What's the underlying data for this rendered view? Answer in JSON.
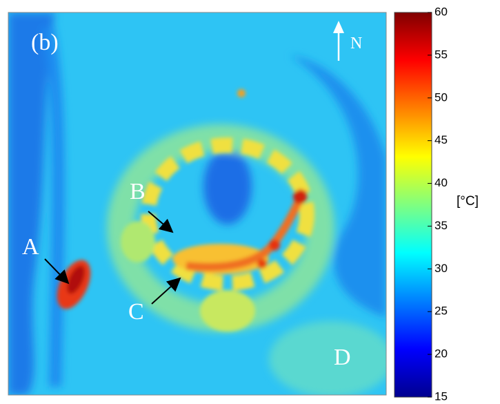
{
  "panel_label": "(b)",
  "north_label": "N",
  "annotations": [
    {
      "label": "A"
    },
    {
      "label": "B"
    },
    {
      "label": "C"
    },
    {
      "label": "D"
    }
  ],
  "colorbar": {
    "unit": "[°C]",
    "lim": [
      15,
      60
    ],
    "ticks": [
      15,
      20,
      25,
      30,
      35,
      40,
      45,
      50,
      55,
      60
    ]
  }
}
